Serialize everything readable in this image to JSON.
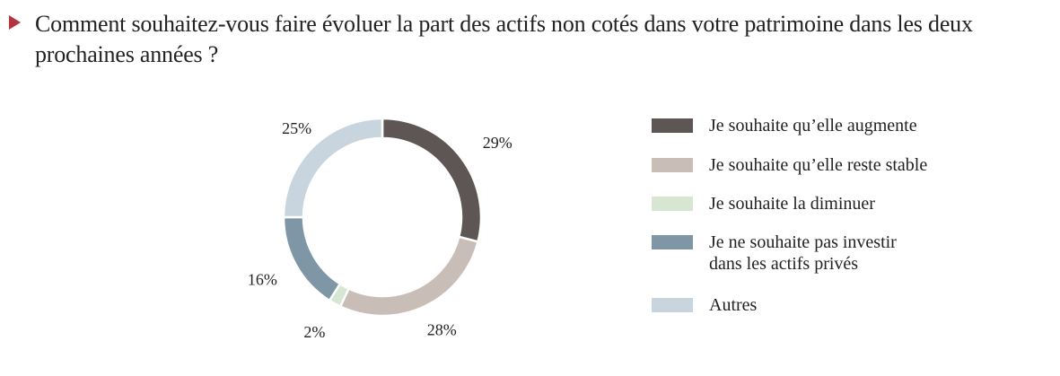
{
  "question": {
    "text": "Comment souhaitez-vous faire évoluer la part des actifs non cotés dans votre patrimoine dans les deux prochaines années ?"
  },
  "chart_data": {
    "type": "pie",
    "style": "donut",
    "categories": [
      "Je souhaite qu’elle augmente",
      "Je souhaite qu’elle reste stable",
      "Je souhaite la diminuer",
      "Je ne souhaite pas investir\ndans les actifs privés",
      "Autres"
    ],
    "values": [
      29,
      28,
      2,
      16,
      25
    ],
    "labels": [
      "29%",
      "28%",
      "2%",
      "16%",
      "25%"
    ],
    "colors": [
      "#5e5654",
      "#c9bdb7",
      "#d6e6d3",
      "#7f96a6",
      "#c9d5de"
    ],
    "legend_position": "right"
  }
}
